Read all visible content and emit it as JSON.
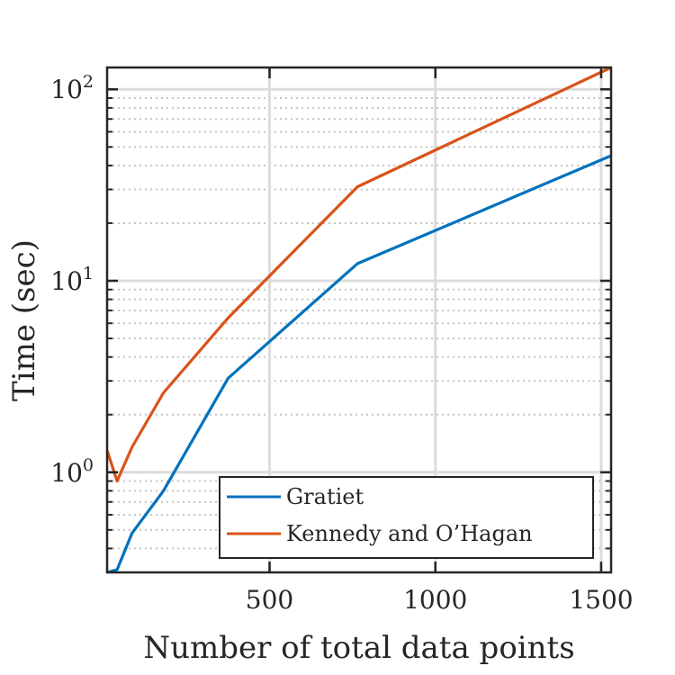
{
  "chart_data": {
    "type": "line",
    "title": "",
    "xlabel": "Number of total data points",
    "ylabel": "Time (sec)",
    "xlim": [
      10,
      1530
    ],
    "ylim": [
      0.3,
      130
    ],
    "yscale": "log",
    "grid": true,
    "x_ticks": [
      {
        "value": 500,
        "label": "500"
      },
      {
        "value": 1000,
        "label": "1000"
      },
      {
        "value": 1500,
        "label": "1500"
      }
    ],
    "y_ticks": [
      {
        "value": 1,
        "base": "10",
        "exp": "0"
      },
      {
        "value": 10,
        "base": "10",
        "exp": "1"
      },
      {
        "value": 100,
        "base": "10",
        "exp": "2"
      }
    ],
    "legend_position": "bottom-right",
    "series": [
      {
        "name": "Gratiet",
        "color": "#0072BD",
        "x": [
          10,
          40,
          85,
          180,
          375,
          765,
          1530
        ],
        "y": [
          0.3,
          0.31,
          0.48,
          0.8,
          3.1,
          12.3,
          45
        ]
      },
      {
        "name": "Kennedy and O’Hagan",
        "color": "#D95319",
        "x": [
          10,
          40,
          85,
          180,
          375,
          765,
          1530
        ],
        "y": [
          1.3,
          0.9,
          1.35,
          2.6,
          6.4,
          31,
          130
        ]
      }
    ]
  }
}
